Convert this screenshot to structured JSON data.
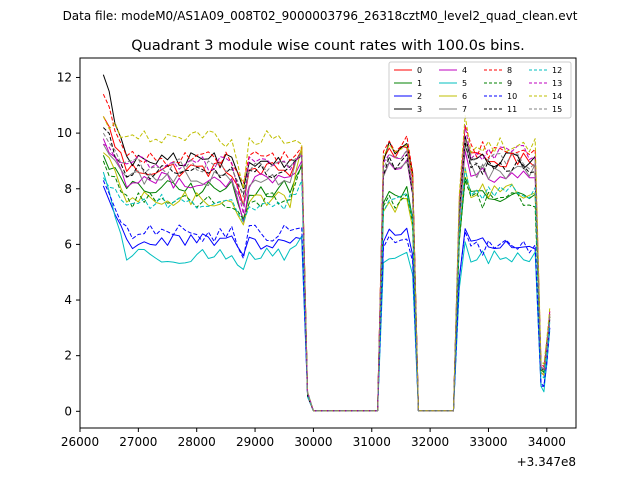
{
  "chart_data": {
    "type": "line",
    "suptitle": "Data file: modeM0/AS1A09_008T02_9000003796_26318cztM0_level2_quad_clean.evt",
    "title": "Quadrant 3 module wise count rates with 100.0s bins.",
    "xlabel": "",
    "ylabel": "",
    "x_offset_label": "+3.347e8",
    "xlim": [
      26000,
      34500
    ],
    "ylim": [
      -0.6,
      12.7
    ],
    "xticks": [
      "26000",
      "27000",
      "28000",
      "29000",
      "30000",
      "31000",
      "32000",
      "33000",
      "34000"
    ],
    "yticks": [
      "0",
      "2",
      "4",
      "6",
      "8",
      "10",
      "12"
    ],
    "segments": [
      {
        "x_start": 26400,
        "x_end": 29800,
        "type": "active"
      },
      {
        "x_start": 29900,
        "x_end": 31100,
        "type": "gap"
      },
      {
        "x_start": 31200,
        "x_end": 31700,
        "type": "active"
      },
      {
        "x_start": 31800,
        "x_end": 32400,
        "type": "gap"
      },
      {
        "x_start": 32500,
        "x_end": 33800,
        "type": "active"
      },
      {
        "x_start": 33900,
        "x_end": 34100,
        "type": "tail"
      }
    ],
    "series": [
      {
        "name": "0",
        "color": "#ff0000",
        "dash": "solid",
        "start": 10.6,
        "base1": 8.7,
        "dip": 7.4,
        "end1": 9.4,
        "base2": 9.5,
        "base3": 9.0,
        "tail": [
          1.4,
          1.3,
          2.2,
          3.5
        ]
      },
      {
        "name": "1",
        "color": "#008000",
        "dash": "solid",
        "start": 9.2,
        "base1": 8.0,
        "dip": 6.9,
        "end1": 8.8,
        "base2": 7.9,
        "base3": 7.7,
        "tail": [
          1.5,
          1.4,
          2.3,
          3.3
        ]
      },
      {
        "name": "2",
        "color": "#0000ff",
        "dash": "solid",
        "start": 8.1,
        "base1": 6.1,
        "dip": 5.6,
        "end1": 6.2,
        "base2": 6.5,
        "base3": 6.0,
        "tail": [
          0.9,
          0.9,
          1.7,
          3.0
        ]
      },
      {
        "name": "3",
        "color": "#000000",
        "dash": "solid",
        "start": 12.1,
        "base1": 9.0,
        "dip": 8.0,
        "end1": 9.3,
        "base2": 9.6,
        "base3": 9.0,
        "tail": [
          1.6,
          1.5,
          2.5,
          3.4
        ]
      },
      {
        "name": "4",
        "color": "#bf00bf",
        "dash": "solid",
        "start": 9.8,
        "base1": 8.3,
        "dip": 6.8,
        "end1": 9.0,
        "base2": 8.8,
        "base3": 8.5,
        "tail": [
          1.4,
          1.3,
          2.0,
          3.3
        ]
      },
      {
        "name": "5",
        "color": "#00bfbf",
        "dash": "solid",
        "start": 8.6,
        "base1": 5.6,
        "dip": 5.1,
        "end1": 6.3,
        "base2": 5.6,
        "base3": 5.5,
        "tail": [
          0.9,
          0.7,
          1.8,
          2.9
        ]
      },
      {
        "name": "6",
        "color": "#bfbf00",
        "dash": "solid",
        "start": 9.3,
        "base1": 7.6,
        "dip": 6.7,
        "end1": 9.5,
        "base2": 7.6,
        "base3": 7.9,
        "tail": [
          1.4,
          1.3,
          2.1,
          3.4
        ]
      },
      {
        "name": "7",
        "color": "#808080",
        "dash": "solid",
        "start": 9.6,
        "base1": 8.4,
        "dip": 7.4,
        "end1": 9.3,
        "base2": 9.0,
        "base3": 8.6,
        "tail": [
          1.6,
          1.5,
          2.2,
          3.5
        ]
      },
      {
        "name": "8",
        "color": "#ff0000",
        "dash": "dashed",
        "start": 11.4,
        "base1": 9.1,
        "dip": 8.2,
        "end1": 9.5,
        "base2": 9.7,
        "base3": 9.4,
        "tail": [
          1.7,
          1.6,
          2.4,
          3.6
        ]
      },
      {
        "name": "9",
        "color": "#008000",
        "dash": "dashed",
        "start": 9.0,
        "base1": 7.6,
        "dip": 6.9,
        "end1": 8.9,
        "base2": 7.7,
        "base3": 7.6,
        "tail": [
          1.5,
          1.4,
          2.3,
          3.3
        ]
      },
      {
        "name": "10",
        "color": "#0000ff",
        "dash": "dashed",
        "start": 8.3,
        "base1": 6.4,
        "dip": 5.5,
        "end1": 6.6,
        "base2": 6.2,
        "base3": 5.9,
        "tail": [
          1.0,
          0.9,
          1.8,
          3.0
        ]
      },
      {
        "name": "11",
        "color": "#000000",
        "dash": "dashed",
        "start": 10.2,
        "base1": 8.6,
        "dip": 7.8,
        "end1": 9.2,
        "base2": 9.0,
        "base3": 8.8,
        "tail": [
          1.5,
          1.5,
          2.3,
          3.4
        ]
      },
      {
        "name": "12",
        "color": "#00bfbf",
        "dash": "dashed",
        "start": 8.4,
        "base1": 7.5,
        "dip": 6.8,
        "end1": 8.3,
        "base2": 7.7,
        "base3": 7.9,
        "tail": [
          1.3,
          1.2,
          2.0,
          3.2
        ]
      },
      {
        "name": "13",
        "color": "#bf00bf",
        "dash": "dashed",
        "start": 9.6,
        "base1": 8.9,
        "dip": 7.1,
        "end1": 9.2,
        "base2": 9.3,
        "base3": 9.3,
        "tail": [
          1.6,
          1.5,
          2.3,
          3.6
        ]
      },
      {
        "name": "14",
        "color": "#bfbf00",
        "dash": "dashed",
        "start": 10.6,
        "base1": 9.8,
        "dip": 8.0,
        "end1": 9.6,
        "base2": 9.6,
        "base3": 9.6,
        "tail": [
          1.8,
          1.7,
          2.6,
          3.7
        ]
      },
      {
        "name": "15",
        "color": "#808080",
        "dash": "dashed",
        "start": 10.0,
        "base1": 8.8,
        "dip": 7.7,
        "end1": 9.2,
        "base2": 9.2,
        "base3": 9.0,
        "tail": [
          1.6,
          1.5,
          2.3,
          3.5
        ]
      }
    ]
  }
}
